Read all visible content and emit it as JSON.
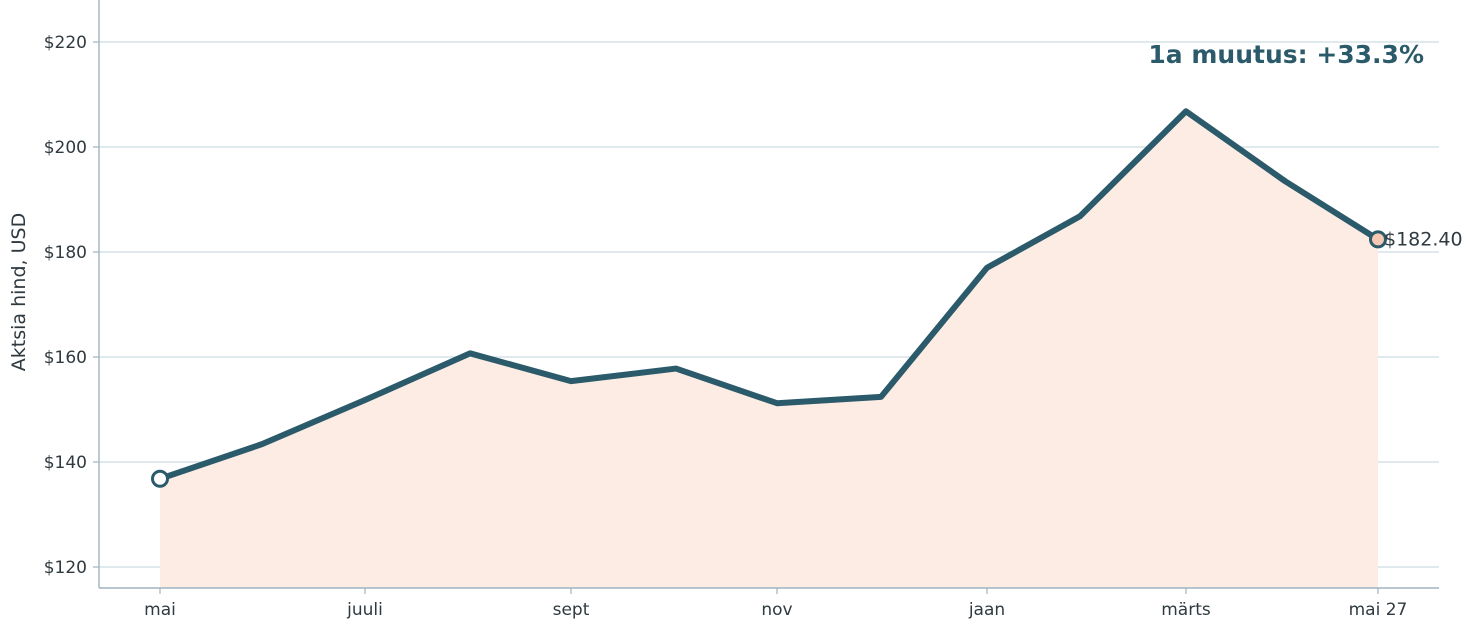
{
  "chart_data": {
    "type": "area",
    "x": [
      "mai",
      "",
      "juuli",
      "",
      "sept",
      "",
      "nov",
      "",
      "jaan",
      "",
      "märts",
      "",
      "mai 27"
    ],
    "x_tick_labels": [
      "mai",
      "juuli",
      "sept",
      "nov",
      "jaan",
      "märts",
      "mai 27"
    ],
    "series": [
      {
        "values": [
          136.8,
          143.4,
          151.8,
          160.7,
          155.4,
          157.8,
          151.2,
          152.4,
          177.0,
          186.8,
          206.8,
          193.5,
          182.4
        ]
      }
    ],
    "ylabel": "Aktsia hind, USD",
    "y_ticks": [
      120,
      140,
      160,
      180,
      200,
      220
    ],
    "y_tick_labels": [
      "$120",
      "$140",
      "$160",
      "$180",
      "$200",
      "$220"
    ],
    "ylim": [
      116,
      228
    ],
    "grid": "horizontal",
    "annotation": "1a muutus: +33.3%",
    "end_label": "$182.40",
    "colors": {
      "line": "#2b5a6b",
      "fill": "#fcece4",
      "grid": "#d6e2e8",
      "axis": "#9fb4c0",
      "annotation": "#2b5a6b",
      "end_marker_fill": "#f6c8b4",
      "start_marker_fill": "#ffffff"
    }
  }
}
